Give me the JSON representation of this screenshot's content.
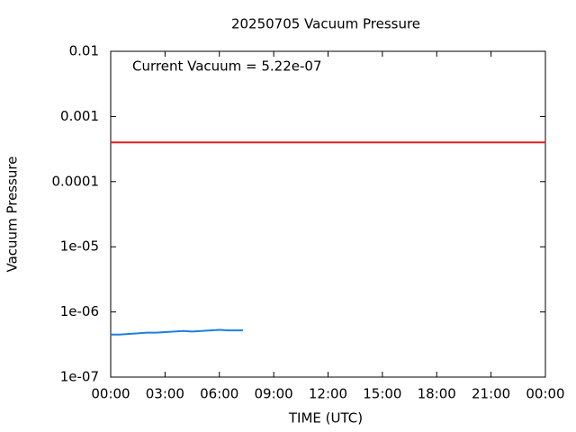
{
  "chart_data": {
    "type": "line",
    "title": "20250705 Vacuum Pressure",
    "xlabel": "TIME (UTC)",
    "ylabel": "Vacuum Pressure",
    "annotation": "Current Vacuum = 5.22e-07",
    "yscale": "log",
    "xlim": [
      0,
      24
    ],
    "xticks": [
      {
        "value": 0,
        "label": "00:00"
      },
      {
        "value": 3,
        "label": "03:00"
      },
      {
        "value": 6,
        "label": "06:00"
      },
      {
        "value": 9,
        "label": "09:00"
      },
      {
        "value": 12,
        "label": "12:00"
      },
      {
        "value": 15,
        "label": "15:00"
      },
      {
        "value": 18,
        "label": "18:00"
      },
      {
        "value": 21,
        "label": "21:00"
      },
      {
        "value": 24,
        "label": "00:00"
      }
    ],
    "ylim": [
      1e-07,
      0.01
    ],
    "yticks": [
      {
        "value": 1e-07,
        "label": "1e-07"
      },
      {
        "value": 1e-06,
        "label": "1e-06"
      },
      {
        "value": 1e-05,
        "label": "1e-05"
      },
      0.0001,
      0.001,
      0.01
    ],
    "threshold": {
      "value": 0.0004,
      "color": "#e41a1c"
    },
    "series": [
      {
        "color": "#1f7fe0",
        "x": [
          0,
          0.5,
          1,
          1.5,
          2,
          2.5,
          3,
          3.5,
          4,
          4.5,
          5,
          5.5,
          6,
          6.5,
          7,
          7.3
        ],
        "values": [
          4.5e-07,
          4.5e-07,
          4.6e-07,
          4.7e-07,
          4.8e-07,
          4.8e-07,
          4.9e-07,
          5e-07,
          5.1e-07,
          5e-07,
          5.1e-07,
          5.2e-07,
          5.3e-07,
          5.2e-07,
          5.2e-07,
          5.22e-07
        ]
      }
    ]
  }
}
